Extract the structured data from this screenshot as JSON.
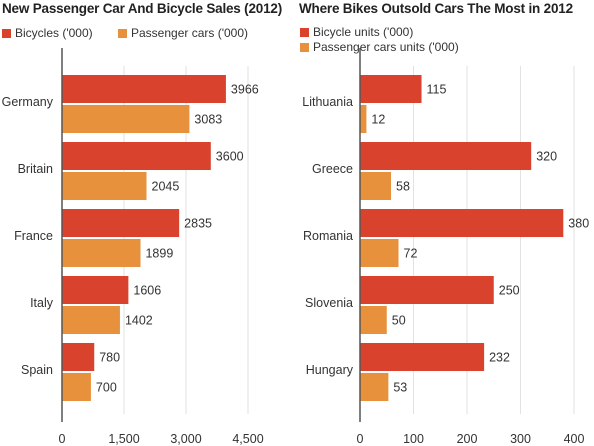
{
  "colors": {
    "bicycles": "#d9432e",
    "cars": "#e8913c",
    "axis": "#555555",
    "grid": "#e2e2e2",
    "text": "#333333"
  },
  "chart_data": [
    {
      "type": "bar",
      "orientation": "horizontal",
      "title": "New Passenger Car And Bicycle Sales (2012)",
      "categories": [
        "Germany",
        "Britain",
        "France",
        "Italy",
        "Spain"
      ],
      "series": [
        {
          "name": "Bicycles ('000)",
          "values": [
            3966,
            3600,
            2835,
            1606,
            780
          ]
        },
        {
          "name": "Passenger cars ('000)",
          "values": [
            3083,
            2045,
            1899,
            1402,
            700
          ]
        }
      ],
      "xlim": [
        0,
        4500
      ],
      "xticks": [
        0,
        1500,
        3000,
        4500
      ],
      "xtick_labels": [
        "0",
        "1,500",
        "3,000",
        "4,500"
      ],
      "legend_position": "top-left",
      "grid": true
    },
    {
      "type": "bar",
      "orientation": "horizontal",
      "title": "Where Bikes Outsold Cars The Most in 2012",
      "categories": [
        "Lithuania",
        "Greece",
        "Romania",
        "Slovenia",
        "Hungary"
      ],
      "series": [
        {
          "name": "Bicycle units ('000)",
          "values": [
            115,
            320,
            380,
            250,
            232
          ]
        },
        {
          "name": "Passenger cars units ('000)",
          "values": [
            12,
            58,
            72,
            50,
            53
          ]
        }
      ],
      "xlim": [
        0,
        400
      ],
      "xticks": [
        0,
        100,
        200,
        300,
        400
      ],
      "xtick_labels": [
        "0",
        "100",
        "200",
        "300",
        "400"
      ],
      "legend_position": "top-left",
      "grid": true
    }
  ]
}
